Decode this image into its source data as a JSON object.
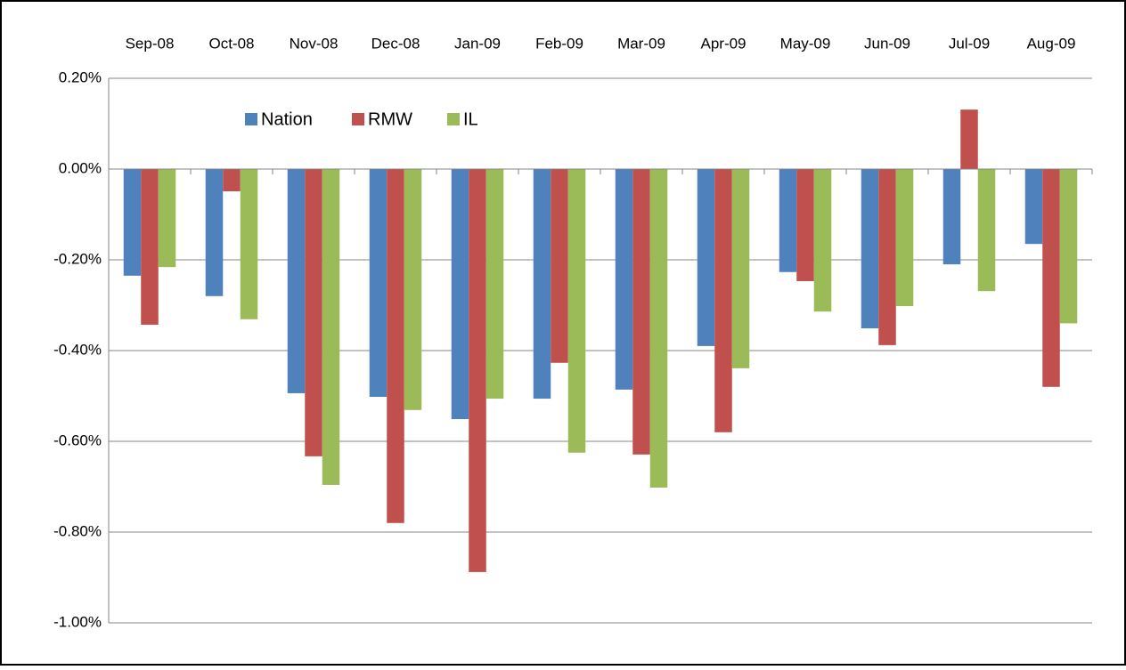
{
  "chart_data": {
    "type": "bar",
    "categories": [
      "Sep-08",
      "Oct-08",
      "Nov-08",
      "Dec-08",
      "Jan-09",
      "Feb-09",
      "Mar-09",
      "Apr-09",
      "May-09",
      "Jun-09",
      "Jul-09",
      "Aug-09"
    ],
    "series": [
      {
        "name": "Nation",
        "color": "#4f81bd",
        "values": [
          -0.235,
          -0.28,
          -0.494,
          -0.502,
          -0.551,
          -0.506,
          -0.486,
          -0.39,
          -0.227,
          -0.351,
          -0.21,
          -0.165
        ]
      },
      {
        "name": "RMW",
        "color": "#c0504d",
        "values": [
          -0.343,
          -0.049,
          -0.633,
          -0.78,
          -0.888,
          -0.427,
          -0.629,
          -0.58,
          -0.247,
          -0.388,
          0.131,
          -0.48
        ]
      },
      {
        "name": "IL",
        "color": "#9bbb59",
        "values": [
          -0.216,
          -0.331,
          -0.696,
          -0.531,
          -0.506,
          -0.625,
          -0.702,
          -0.439,
          -0.314,
          -0.302,
          -0.269,
          -0.34
        ]
      }
    ],
    "ylim": [
      -1,
      0.2
    ],
    "yticks": [
      {
        "value": 0.2,
        "label": "0.20%"
      },
      {
        "value": 0,
        "label": "0.00%"
      },
      {
        "value": -0.2,
        "label": "-0.20%"
      },
      {
        "value": -0.4,
        "label": "-0.40%"
      },
      {
        "value": -0.6,
        "label": "-0.60%"
      },
      {
        "value": -0.8,
        "label": "-0.80%"
      },
      {
        "value": -1,
        "label": "-1.00%"
      }
    ],
    "grid": true,
    "legend": "top-left"
  }
}
